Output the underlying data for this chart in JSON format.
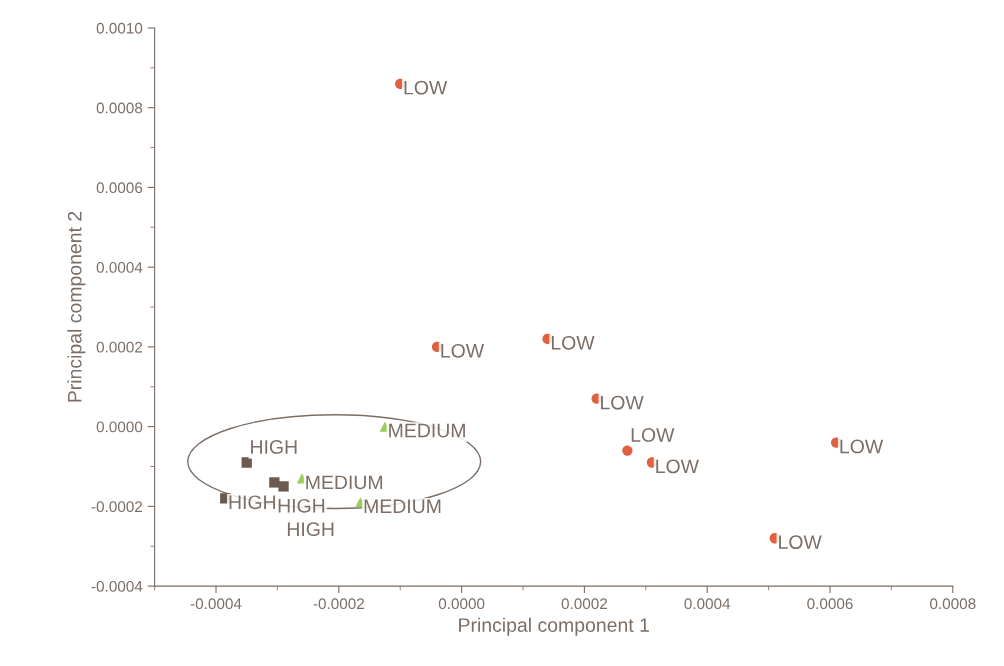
{
  "chart_data": {
    "type": "scatter",
    "xlabel": "Principal component 1",
    "ylabel": "Principal component 2",
    "xlim": [
      -0.0005,
      0.0008
    ],
    "ylim": [
      -0.0004,
      0.001
    ],
    "xticks": [
      {
        "value": -0.0004,
        "label": "-0.0004"
      },
      {
        "value": -0.0002,
        "label": "-0.0002"
      },
      {
        "value": 0,
        "label": "0.0000"
      },
      {
        "value": 0.0002,
        "label": "0.0002"
      },
      {
        "value": 0.0004,
        "label": "0.0004"
      },
      {
        "value": 0.0006,
        "label": "0.0006"
      },
      {
        "value": 0.0008,
        "label": "0.0008"
      }
    ],
    "yticks": [
      {
        "value": -0.0004,
        "label": "-0.0004"
      },
      {
        "value": -0.0002,
        "label": "-0.0002"
      },
      {
        "value": 0,
        "label": "0.0000"
      },
      {
        "value": 0.0002,
        "label": "0.0002"
      },
      {
        "value": 0.0004,
        "label": "0.0004"
      },
      {
        "value": 0.0006,
        "label": "0.0006"
      },
      {
        "value": 0.0008,
        "label": "0.0008"
      },
      {
        "value": 0.001,
        "label": "0.0010"
      }
    ],
    "grid": false,
    "legend": false,
    "series": [
      {
        "name": "LOW",
        "color": "#e0603f",
        "marker": "circle",
        "x": [
          -0.0001,
          -4e-05,
          0.00014,
          0.00022,
          0.00027,
          0.00031,
          0.00061,
          0.00051
        ],
        "values": [
          0.00086,
          0.0002,
          0.00022,
          7e-05,
          -6e-05,
          -9e-05,
          -4e-05,
          -0.00028
        ]
      },
      {
        "name": "MEDIUM",
        "color": "#9ccc5a",
        "marker": "triangle",
        "x": [
          -0.000125,
          -0.000165,
          -0.00026
        ],
        "values": [
          0.0,
          -0.00019,
          -0.00013
        ]
      },
      {
        "name": "HIGH",
        "color": "#6b5a50",
        "marker": "square",
        "x": [
          -0.00035,
          -0.000385,
          -0.000305,
          -0.00029
        ],
        "values": [
          -9e-05,
          -0.00018,
          -0.00014,
          -0.00015
        ]
      }
    ]
  }
}
